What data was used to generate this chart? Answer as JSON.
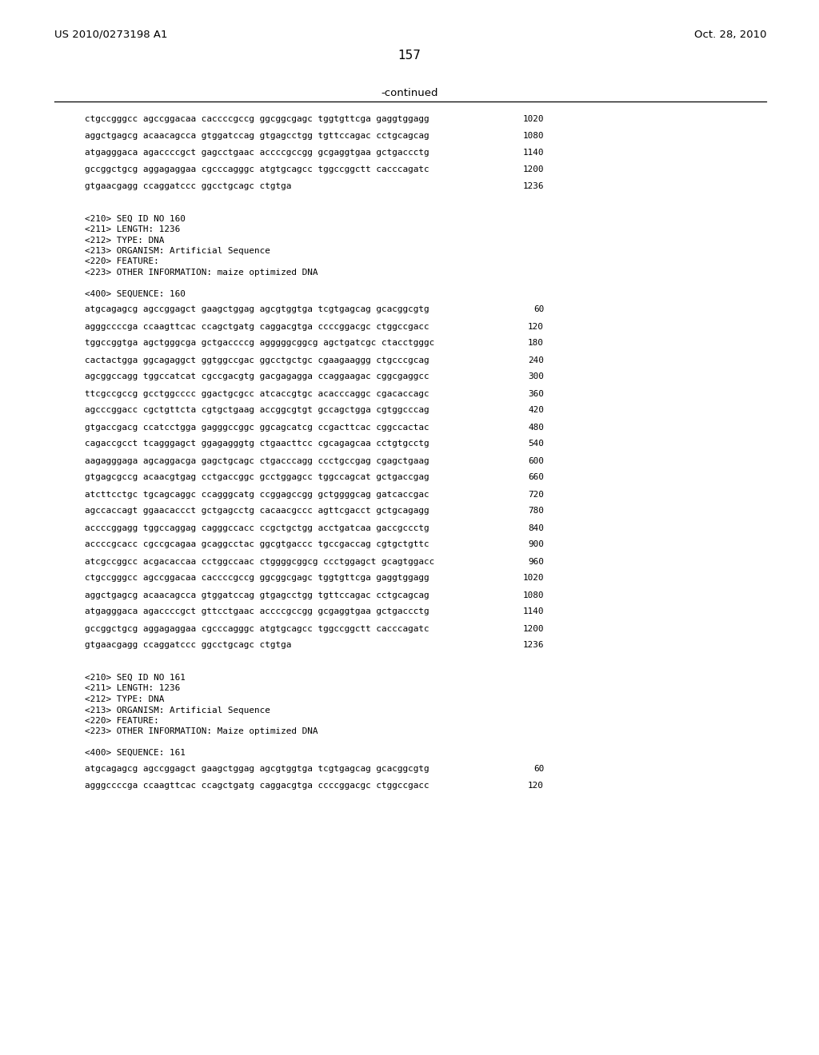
{
  "background_color": "#ffffff",
  "header_left": "US 2010/0273198 A1",
  "header_right": "Oct. 28, 2010",
  "page_number": "157",
  "continued_label": "-continued",
  "mono_font": "DejaVu Sans Mono",
  "sans_font": "DejaVu Sans",
  "lines": [
    {
      "text": "ctgccgggcc agccggacaa caccccgccg ggcggcgagc tggtgttcga gaggtggagg",
      "num": "1020",
      "type": "seq"
    },
    {
      "text": "",
      "num": "",
      "type": "seq_gap"
    },
    {
      "text": "aggctgagcg acaacagcca gtggatccag gtgagcctgg tgttccagac cctgcagcag",
      "num": "1080",
      "type": "seq"
    },
    {
      "text": "",
      "num": "",
      "type": "seq_gap"
    },
    {
      "text": "atgagggaca agaccccgct gagcctgaac accccgccgg gcgaggtgaa gctgaccctg",
      "num": "1140",
      "type": "seq"
    },
    {
      "text": "",
      "num": "",
      "type": "seq_gap"
    },
    {
      "text": "gccggctgcg aggagaggaa cgcccagggc atgtgcagcc tggccggctt cacccagatc",
      "num": "1200",
      "type": "seq"
    },
    {
      "text": "",
      "num": "",
      "type": "seq_gap"
    },
    {
      "text": "gtgaacgagg ccaggatccc ggcctgcagc ctgtga",
      "num": "1236",
      "type": "seq"
    },
    {
      "text": "",
      "num": "",
      "type": "blank"
    },
    {
      "text": "",
      "num": "",
      "type": "blank"
    },
    {
      "text": "<210> SEQ ID NO 160",
      "num": "",
      "type": "meta"
    },
    {
      "text": "<211> LENGTH: 1236",
      "num": "",
      "type": "meta"
    },
    {
      "text": "<212> TYPE: DNA",
      "num": "",
      "type": "meta"
    },
    {
      "text": "<213> ORGANISM: Artificial Sequence",
      "num": "",
      "type": "meta"
    },
    {
      "text": "<220> FEATURE:",
      "num": "",
      "type": "meta"
    },
    {
      "text": "<223> OTHER INFORMATION: maize optimized DNA",
      "num": "",
      "type": "meta"
    },
    {
      "text": "",
      "num": "",
      "type": "blank"
    },
    {
      "text": "<400> SEQUENCE: 160",
      "num": "",
      "type": "meta"
    },
    {
      "text": "",
      "num": "",
      "type": "seq_gap"
    },
    {
      "text": "atgcagagcg agccggagct gaagctggag agcgtggtga tcgtgagcag gcacggcgtg",
      "num": "60",
      "type": "seq"
    },
    {
      "text": "",
      "num": "",
      "type": "seq_gap"
    },
    {
      "text": "agggccccga ccaagttcac ccagctgatg caggacgtga ccccggacgc ctggccgacc",
      "num": "120",
      "type": "seq"
    },
    {
      "text": "",
      "num": "",
      "type": "seq_gap"
    },
    {
      "text": "tggccggtga agctgggcga gctgaccccg agggggcggcg agctgatcgc ctacctgggc",
      "num": "180",
      "type": "seq"
    },
    {
      "text": "",
      "num": "",
      "type": "seq_gap"
    },
    {
      "text": "cactactgga ggcagaggct ggtggccgac ggcctgctgc cgaagaaggg ctgcccgcag",
      "num": "240",
      "type": "seq"
    },
    {
      "text": "",
      "num": "",
      "type": "seq_gap"
    },
    {
      "text": "agcggccagg tggccatcat cgccgacgtg gacgagagga ccaggaagac cggcgaggcc",
      "num": "300",
      "type": "seq"
    },
    {
      "text": "",
      "num": "",
      "type": "seq_gap"
    },
    {
      "text": "ttcgccgccg gcctggcccc ggactgcgcc atcaccgtgc acacccaggc cgacaccagc",
      "num": "360",
      "type": "seq"
    },
    {
      "text": "",
      "num": "",
      "type": "seq_gap"
    },
    {
      "text": "agcccggacc cgctgttcta cgtgctgaag accggcgtgt gccagctgga cgtggcccag",
      "num": "420",
      "type": "seq"
    },
    {
      "text": "",
      "num": "",
      "type": "seq_gap"
    },
    {
      "text": "gtgaccgacg ccatcctgga gagggccggc ggcagcatcg ccgacttcac cggccactac",
      "num": "480",
      "type": "seq"
    },
    {
      "text": "",
      "num": "",
      "type": "seq_gap"
    },
    {
      "text": "cagaccgcct tcagggagct ggagagggtg ctgaacttcc cgcagagcaa cctgtgcctg",
      "num": "540",
      "type": "seq"
    },
    {
      "text": "",
      "num": "",
      "type": "seq_gap"
    },
    {
      "text": "aagagggaga agcaggacga gagctgcagc ctgacccagg ccctgccgag cgagctgaag",
      "num": "600",
      "type": "seq"
    },
    {
      "text": "",
      "num": "",
      "type": "seq_gap"
    },
    {
      "text": "gtgagcgccg acaacgtgag cctgaccggc gcctggagcc tggccagcat gctgaccgag",
      "num": "660",
      "type": "seq"
    },
    {
      "text": "",
      "num": "",
      "type": "seq_gap"
    },
    {
      "text": "atcttcctgc tgcagcaggc ccagggcatg ccggagccgg gctggggcag gatcaccgac",
      "num": "720",
      "type": "seq"
    },
    {
      "text": "",
      "num": "",
      "type": "seq_gap"
    },
    {
      "text": "agccaccagt ggaacaccct gctgagcctg cacaacgccc agttcgacct gctgcagagg",
      "num": "780",
      "type": "seq"
    },
    {
      "text": "",
      "num": "",
      "type": "seq_gap"
    },
    {
      "text": "accccggagg tggccaggag cagggccacc ccgctgctgg acctgatcaa gaccgccctg",
      "num": "840",
      "type": "seq"
    },
    {
      "text": "",
      "num": "",
      "type": "seq_gap"
    },
    {
      "text": "accccgcacc cgccgcagaa gcaggcctac ggcgtgaccc tgccgaccag cgtgctgttc",
      "num": "900",
      "type": "seq"
    },
    {
      "text": "",
      "num": "",
      "type": "seq_gap"
    },
    {
      "text": "atcgccggcc acgacaccaa cctggccaac ctggggcggcg ccctggagct gcagtggacc",
      "num": "960",
      "type": "seq"
    },
    {
      "text": "",
      "num": "",
      "type": "seq_gap"
    },
    {
      "text": "ctgccgggcc agccggacaa caccccgccg ggcggcgagc tggtgttcga gaggtggagg",
      "num": "1020",
      "type": "seq"
    },
    {
      "text": "",
      "num": "",
      "type": "seq_gap"
    },
    {
      "text": "aggctgagcg acaacagcca gtggatccag gtgagcctgg tgttccagac cctgcagcag",
      "num": "1080",
      "type": "seq"
    },
    {
      "text": "",
      "num": "",
      "type": "seq_gap"
    },
    {
      "text": "atgagggaca agaccccgct gttcctgaac accccgccgg gcgaggtgaa gctgaccctg",
      "num": "1140",
      "type": "seq"
    },
    {
      "text": "",
      "num": "",
      "type": "seq_gap"
    },
    {
      "text": "gccggctgcg aggagaggaa cgcccagggc atgtgcagcc tggccggctt cacccagatc",
      "num": "1200",
      "type": "seq"
    },
    {
      "text": "",
      "num": "",
      "type": "seq_gap"
    },
    {
      "text": "gtgaacgagg ccaggatccc ggcctgcagc ctgtga",
      "num": "1236",
      "type": "seq"
    },
    {
      "text": "",
      "num": "",
      "type": "blank"
    },
    {
      "text": "",
      "num": "",
      "type": "blank"
    },
    {
      "text": "<210> SEQ ID NO 161",
      "num": "",
      "type": "meta"
    },
    {
      "text": "<211> LENGTH: 1236",
      "num": "",
      "type": "meta"
    },
    {
      "text": "<212> TYPE: DNA",
      "num": "",
      "type": "meta"
    },
    {
      "text": "<213> ORGANISM: Artificial Sequence",
      "num": "",
      "type": "meta"
    },
    {
      "text": "<220> FEATURE:",
      "num": "",
      "type": "meta"
    },
    {
      "text": "<223> OTHER INFORMATION: Maize optimized DNA",
      "num": "",
      "type": "meta"
    },
    {
      "text": "",
      "num": "",
      "type": "blank"
    },
    {
      "text": "<400> SEQUENCE: 161",
      "num": "",
      "type": "meta"
    },
    {
      "text": "",
      "num": "",
      "type": "seq_gap"
    },
    {
      "text": "atgcagagcg agccggagct gaagctggag agcgtggtga tcgtgagcag gcacggcgtg",
      "num": "60",
      "type": "seq"
    },
    {
      "text": "",
      "num": "",
      "type": "seq_gap"
    },
    {
      "text": "agggccccga ccaagttcac ccagctgatg caggacgtga ccccggacgc ctggccgacc",
      "num": "120",
      "type": "seq"
    }
  ]
}
